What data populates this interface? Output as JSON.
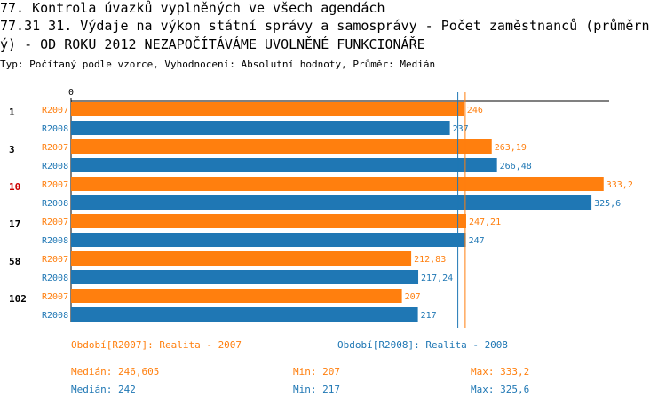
{
  "header": {
    "line1": "77. Kontrola úvazků vyplněných ve všech agendách",
    "line2": "77.31 31. Výdaje na výkon státní správy a samosprávy - Počet zaměstnanců (průměrn",
    "line3": "ý) - OD ROKU 2012 NEZAPOČÍTÁVÁME UVOLNĚNÉ FUNKCIONÁŘE",
    "subtitle": "Typ: Počítaný podle vzorce, Vyhodnocení: Absolutní hodnoty, Průměr: Medián"
  },
  "colors": {
    "r2007": "#ff7f0e",
    "r2008": "#1f77b4",
    "highlight": "#cc0000",
    "text": "#000000"
  },
  "chart_data": {
    "type": "bar",
    "orientation": "horizontal",
    "axis_zero_label": "0",
    "xlim": [
      0,
      365
    ],
    "categories": [
      "1",
      "3",
      "10",
      "17",
      "58",
      "102"
    ],
    "highlight_category": "10",
    "series": [
      {
        "name": "R2007",
        "values": [
          246,
          263.19,
          333.2,
          247.21,
          212.83,
          207
        ],
        "value_labels": [
          "246",
          "263,19",
          "333,2",
          "247,21",
          "212,83",
          "207"
        ]
      },
      {
        "name": "R2008",
        "values": [
          237,
          266.48,
          325.6,
          247,
          217.24,
          217
        ],
        "value_labels": [
          "237",
          "266,48",
          "325,6",
          "247",
          "217,24",
          "217"
        ]
      }
    ],
    "median_lines": {
      "R2007": 246.605,
      "R2008": 242
    }
  },
  "legend": {
    "r2007": "Období[R2007]: Realita - 2007",
    "r2008": "Období[R2008]: Realita - 2008"
  },
  "stats": {
    "r2007": {
      "median": "Medián: 246,605",
      "min": "Min: 207",
      "max": "Max: 333,2"
    },
    "r2008": {
      "median": "Medián: 242",
      "min": "Min: 217",
      "max": "Max: 325,6"
    }
  }
}
